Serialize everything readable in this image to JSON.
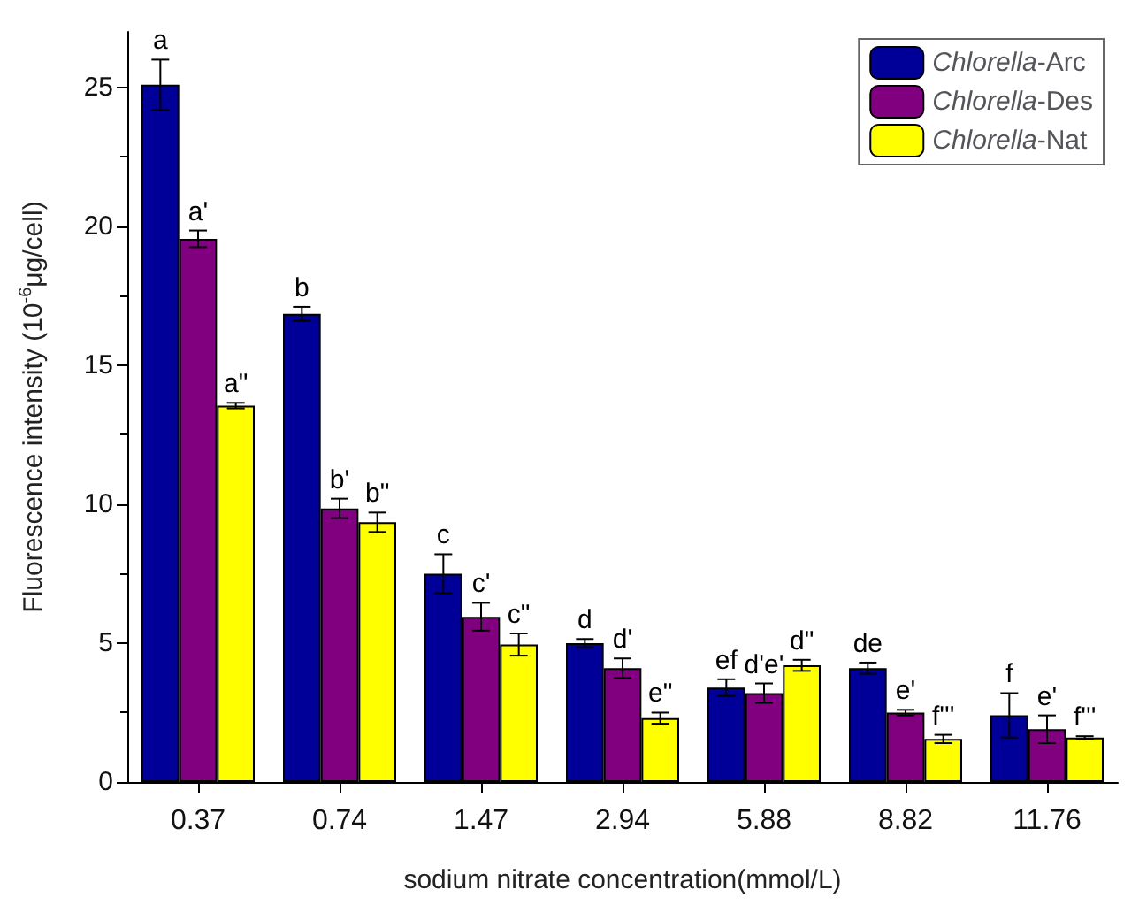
{
  "chart_data": {
    "type": "bar",
    "xlabel": "sodium nitrate concentration(mmol/L)",
    "ylabel": "Fluorescence intensity (10$^{-6}$μg/cell)",
    "categories": [
      "0.37",
      "0.74",
      "1.47",
      "2.94",
      "5.88",
      "8.82",
      "11.76"
    ],
    "series": [
      {
        "name": "Chlorella-Arc",
        "color": "#000099",
        "values": [
          25.1,
          16.85,
          7.5,
          5.0,
          3.4,
          4.1,
          2.4
        ],
        "errors": [
          0.9,
          0.25,
          0.7,
          0.15,
          0.3,
          0.2,
          0.8
        ],
        "value_labels": [
          "a",
          "b",
          "c",
          "d",
          "ef",
          "de",
          "f"
        ]
      },
      {
        "name": "Chlorella-Des",
        "color": "#800080",
        "values": [
          19.55,
          9.85,
          5.95,
          4.1,
          3.2,
          2.5,
          1.9
        ],
        "errors": [
          0.3,
          0.35,
          0.5,
          0.35,
          0.35,
          0.1,
          0.5
        ],
        "value_labels": [
          "a'",
          "b'",
          "c'",
          "d'",
          "d'e'",
          "e'",
          "e'"
        ]
      },
      {
        "name": "Chlorella-Nat",
        "color": "#ffff00",
        "values": [
          13.55,
          9.35,
          4.95,
          2.3,
          4.2,
          1.55,
          1.6
        ],
        "errors": [
          0.1,
          0.35,
          0.4,
          0.2,
          0.2,
          0.15,
          0.05
        ],
        "value_labels": [
          "a\"",
          "b\"",
          "c\"",
          "e\"",
          "d\"",
          "f'''",
          "f'''"
        ]
      }
    ],
    "ylim": [
      0,
      27
    ],
    "yticks": [
      0,
      5,
      10,
      15,
      20,
      25
    ],
    "grid": false,
    "legend": "top right"
  }
}
